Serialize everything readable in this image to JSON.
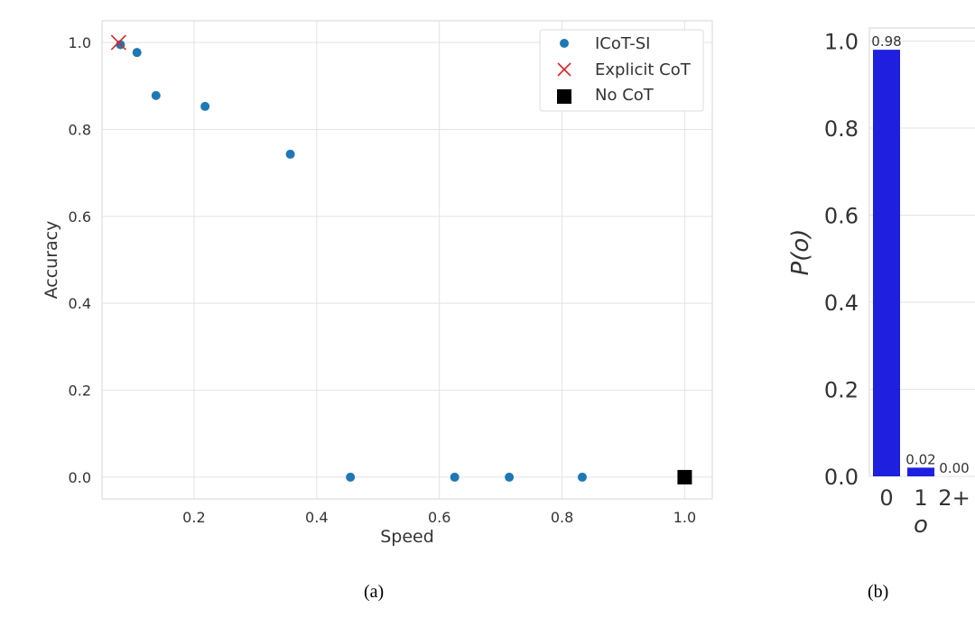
{
  "chart_data": [
    {
      "type": "scatter",
      "caption": "(a)",
      "xlabel": "Speed",
      "ylabel": "Accuracy",
      "xlim": [
        0.05,
        1.045
      ],
      "ylim": [
        -0.05,
        1.05
      ],
      "xticks": [
        "0.2",
        "0.4",
        "0.6",
        "0.8",
        "1.0"
      ],
      "yticks": [
        "0.0",
        "0.2",
        "0.4",
        "0.6",
        "0.8",
        "1.0"
      ],
      "grid": true,
      "legend_position": "top-right",
      "series": [
        {
          "name": "ICoT-SI",
          "marker": "circle",
          "color": "#1f77b4",
          "points": [
            {
              "x": 0.08,
              "y": 0.995
            },
            {
              "x": 0.107,
              "y": 0.977
            },
            {
              "x": 0.138,
              "y": 0.878
            },
            {
              "x": 0.218,
              "y": 0.853
            },
            {
              "x": 0.357,
              "y": 0.743
            },
            {
              "x": 0.455,
              "y": 0.0
            },
            {
              "x": 0.625,
              "y": 0.0
            },
            {
              "x": 0.714,
              "y": 0.0
            },
            {
              "x": 0.833,
              "y": 0.0
            }
          ]
        },
        {
          "name": "Explicit CoT",
          "marker": "x",
          "color": "#d62728",
          "points": [
            {
              "x": 0.077,
              "y": 1.0
            }
          ]
        },
        {
          "name": "No CoT",
          "marker": "square",
          "color": "#000000",
          "points": [
            {
              "x": 1.0,
              "y": 0.0
            }
          ]
        }
      ]
    },
    {
      "type": "bar",
      "caption": "(b)",
      "xlabel": "o",
      "ylabel": "P(o)",
      "categories": [
        "0",
        "1",
        "2+"
      ],
      "values": [
        0.98,
        0.02,
        0.0
      ],
      "value_labels": [
        "0.98",
        "0.02",
        "0.00"
      ],
      "ylim": [
        0,
        1.03
      ],
      "yticks": [
        "0.0",
        "0.2",
        "0.4",
        "0.6",
        "0.8",
        "1.0"
      ],
      "bar_color": "#1f1fe0",
      "grid": true
    }
  ]
}
